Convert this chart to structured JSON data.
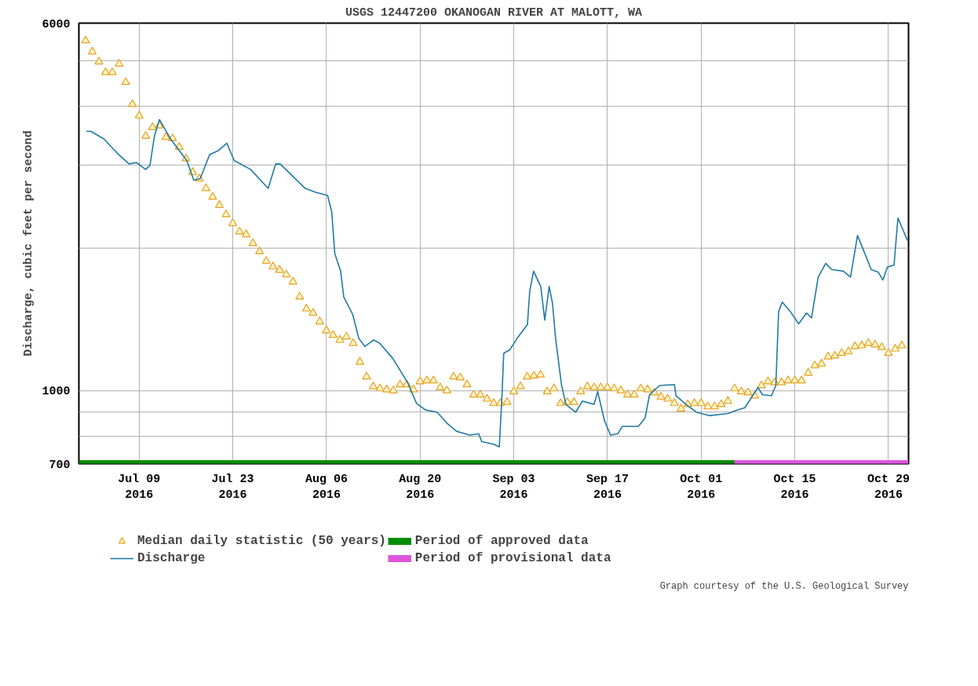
{
  "chart_data": {
    "type": "line",
    "title": "USGS 12447200 OKANOGAN RIVER AT MALOTT, WA",
    "ylabel": "Discharge, cubic feet per second",
    "log": "y",
    "grid": true,
    "legend": "bottom",
    "xlim": [
      "2016-06-30",
      "2016-11-01"
    ],
    "xticks": [
      {
        "value": "2016-07-09",
        "label": "Jul 09\n2016"
      },
      {
        "value": "2016-07-23",
        "label": "Jul 23\n2016"
      },
      {
        "value": "2016-08-06",
        "label": "Aug 06\n2016"
      },
      {
        "value": "2016-08-20",
        "label": "Aug 20\n2016"
      },
      {
        "value": "2016-09-03",
        "label": "Sep 03\n2016"
      },
      {
        "value": "2016-09-17",
        "label": "Sep 17\n2016"
      },
      {
        "value": "2016-10-01",
        "label": "Oct 01\n2016"
      },
      {
        "value": "2016-10-15",
        "label": "Oct 15\n2016"
      },
      {
        "value": "2016-10-29",
        "label": "Oct 29\n2016"
      }
    ],
    "ylim": [
      700,
      6000
    ],
    "yticks": [
      700,
      {
        "value": 800,
        "label": null
      },
      {
        "value": 900,
        "label": null
      },
      1000,
      {
        "value": 2000,
        "label": null
      },
      {
        "value": 3000,
        "label": null
      },
      {
        "value": 4000,
        "label": null
      },
      {
        "value": 5000,
        "label": null
      },
      6000
    ],
    "series": [
      {
        "name": "Median daily statistic (50 years)",
        "type": "scatter",
        "marker": "triangle",
        "color": "#e6a020",
        "x": [
          "2016-07-01",
          "2016-07-02",
          "2016-07-03",
          "2016-07-04",
          "2016-07-05",
          "2016-07-06",
          "2016-07-07",
          "2016-07-08",
          "2016-07-09",
          "2016-07-10",
          "2016-07-11",
          "2016-07-12",
          "2016-07-13",
          "2016-07-14",
          "2016-07-15",
          "2016-07-16",
          "2016-07-17",
          "2016-07-18",
          "2016-07-19",
          "2016-07-20",
          "2016-07-21",
          "2016-07-22",
          "2016-07-23",
          "2016-07-24",
          "2016-07-25",
          "2016-07-26",
          "2016-07-27",
          "2016-07-28",
          "2016-07-29",
          "2016-07-30",
          "2016-07-31",
          "2016-08-01",
          "2016-08-02",
          "2016-08-03",
          "2016-08-04",
          "2016-08-05",
          "2016-08-06",
          "2016-08-07",
          "2016-08-08",
          "2016-08-09",
          "2016-08-10",
          "2016-08-11",
          "2016-08-12",
          "2016-08-13",
          "2016-08-14",
          "2016-08-15",
          "2016-08-16",
          "2016-08-17",
          "2016-08-18",
          "2016-08-19",
          "2016-08-20",
          "2016-08-21",
          "2016-08-22",
          "2016-08-23",
          "2016-08-24",
          "2016-08-25",
          "2016-08-26",
          "2016-08-27",
          "2016-08-28",
          "2016-08-29",
          "2016-08-30",
          "2016-08-31",
          "2016-09-01",
          "2016-09-02",
          "2016-09-03",
          "2016-09-04",
          "2016-09-05",
          "2016-09-06",
          "2016-09-07",
          "2016-09-08",
          "2016-09-09",
          "2016-09-10",
          "2016-09-11",
          "2016-09-12",
          "2016-09-13",
          "2016-09-14",
          "2016-09-15",
          "2016-09-16",
          "2016-09-17",
          "2016-09-18",
          "2016-09-19",
          "2016-09-20",
          "2016-09-21",
          "2016-09-22",
          "2016-09-23",
          "2016-09-24",
          "2016-09-25",
          "2016-09-26",
          "2016-09-27",
          "2016-09-28",
          "2016-09-29",
          "2016-09-30",
          "2016-10-01",
          "2016-10-02",
          "2016-10-03",
          "2016-10-04",
          "2016-10-05",
          "2016-10-06",
          "2016-10-07",
          "2016-10-08",
          "2016-10-09",
          "2016-10-10",
          "2016-10-11",
          "2016-10-12",
          "2016-10-13",
          "2016-10-14",
          "2016-10-15",
          "2016-10-16",
          "2016-10-17",
          "2016-10-18",
          "2016-10-19",
          "2016-10-20",
          "2016-10-21",
          "2016-10-22",
          "2016-10-23",
          "2016-10-24",
          "2016-10-25",
          "2016-10-26",
          "2016-10-27",
          "2016-10-28",
          "2016-10-29",
          "2016-10-30",
          "2016-10-31"
        ],
        "values": [
          5510,
          5220,
          4970,
          4720,
          4720,
          4920,
          4500,
          4040,
          3820,
          3460,
          3610,
          3640,
          3440,
          3420,
          3280,
          3100,
          2900,
          2810,
          2680,
          2570,
          2470,
          2360,
          2260,
          2170,
          2140,
          2050,
          1970,
          1880,
          1830,
          1800,
          1760,
          1700,
          1580,
          1490,
          1460,
          1400,
          1340,
          1310,
          1280,
          1300,
          1260,
          1150,
          1070,
          1020,
          1010,
          1005,
          1000,
          1030,
          1030,
          1005,
          1045,
          1050,
          1050,
          1015,
          1000,
          1070,
          1065,
          1030,
          980,
          980,
          960,
          940,
          940,
          945,
          995,
          1020,
          1070,
          1075,
          1080,
          995,
          1010,
          940,
          945,
          945,
          995,
          1020,
          1015,
          1015,
          1015,
          1010,
          1000,
          980,
          980,
          1010,
          1005,
          990,
          970,
          960,
          940,
          915,
          935,
          940,
          940,
          925,
          925,
          935,
          950,
          1010,
          995,
          990,
          975,
          1025,
          1045,
          1040,
          1040,
          1050,
          1050,
          1050,
          1090,
          1130,
          1140,
          1180,
          1185,
          1200,
          1210,
          1240,
          1245,
          1260,
          1250,
          1235,
          1200,
          1225,
          1245
        ]
      },
      {
        "name": "Discharge",
        "color": "#1f7aa5",
        "x": [
          "2016-07-01T03:00",
          "2016-07-01T19:00",
          "2016-07-03T18:00",
          "2016-07-05T18:00",
          "2016-07-07T12:00",
          "2016-07-08T15:00",
          "2016-07-09T23:00",
          "2016-07-10T15:00",
          "2016-07-11T07:00",
          "2016-07-12T01:00",
          "2016-07-13T17:00",
          "2016-07-16T03:00",
          "2016-07-17T04:00",
          "2016-07-18T03:00",
          "2016-07-19T13:00",
          "2016-07-20T19:00",
          "2016-07-22T03:00",
          "2016-07-23T05:00",
          "2016-07-25T16:00",
          "2016-07-28T07:00",
          "2016-07-29T10:00",
          "2016-07-30T02:00",
          "2016-08-02T20:00",
          "2016-08-04T09:00",
          "2016-08-06T04:00",
          "2016-08-06T19:00",
          "2016-08-07T06:00",
          "2016-08-08T03:00",
          "2016-08-08T14:00",
          "2016-08-09T22:00",
          "2016-08-10T20:00",
          "2016-08-11T18:00",
          "2016-08-13T01:00",
          "2016-08-13T23:00",
          "2016-08-15T22:00",
          "2016-08-18T03:00",
          "2016-08-19T11:00",
          "2016-08-20T19:00",
          "2016-08-22T13:00",
          "2016-08-24T03:00",
          "2016-08-25T11:00",
          "2016-08-27T10:00",
          "2016-08-28T18:00",
          "2016-08-29T05:00",
          "2016-08-30T23:00",
          "2016-08-31T20:00",
          "2016-09-01T05:00",
          "2016-09-01T12:00",
          "2016-09-02T10:00",
          "2016-09-03T12:00",
          "2016-09-05T01:00",
          "2016-09-05T09:00",
          "2016-09-05T23:00",
          "2016-09-07T01:00",
          "2016-09-07T15:00",
          "2016-09-08T07:00",
          "2016-09-08T19:00",
          "2016-09-09T06:00",
          "2016-09-10T03:00",
          "2016-09-10T19:00",
          "2016-09-12T06:00",
          "2016-09-13T06:00",
          "2016-09-15T00:00",
          "2016-09-15T13:00",
          "2016-09-16T13:00",
          "2016-09-17T11:00",
          "2016-09-18T13:00",
          "2016-09-19T05:00",
          "2016-09-21T15:00",
          "2016-09-22T15:00",
          "2016-09-23T07:00",
          "2016-09-24T19:00",
          "2016-09-27T00:00",
          "2016-09-27T06:00",
          "2016-09-28T18:00",
          "2016-09-30T07:00",
          "2016-10-02T07:00",
          "2016-10-05T03:00",
          "2016-10-06T00:00",
          "2016-10-07T13:00",
          "2016-10-09T12:00",
          "2016-10-10T04:00",
          "2016-10-11T12:00",
          "2016-10-12T04:00",
          "2016-10-12T14:00",
          "2016-10-13T03:00",
          "2016-10-14T08:00",
          "2016-10-15T14:00",
          "2016-10-16T18:00",
          "2016-10-17T12:00",
          "2016-10-18T12:00",
          "2016-10-19T15:00",
          "2016-10-20T12:00",
          "2016-10-22T06:00",
          "2016-10-23T08:00",
          "2016-10-24T09:00",
          "2016-10-25T13:00",
          "2016-10-26T10:00",
          "2016-10-27T12:00",
          "2016-10-28T04:00",
          "2016-10-28T20:00",
          "2016-10-29T20:00",
          "2016-10-30T10:00",
          "2016-10-31T20:00"
        ],
        "values": [
          3540,
          3540,
          3410,
          3180,
          3020,
          3040,
          2940,
          3000,
          3460,
          3750,
          3410,
          3070,
          2790,
          2810,
          3160,
          3220,
          3340,
          3070,
          2940,
          2680,
          3020,
          3020,
          2680,
          2630,
          2590,
          2390,
          1950,
          1790,
          1580,
          1450,
          1290,
          1240,
          1280,
          1260,
          1170,
          1040,
          940,
          910,
          900,
          850,
          820,
          805,
          810,
          780,
          770,
          760,
          955,
          1200,
          1220,
          1290,
          1380,
          1620,
          1790,
          1660,
          1410,
          1660,
          1530,
          1290,
          1030,
          935,
          900,
          950,
          935,
          995,
          865,
          805,
          810,
          840,
          840,
          875,
          980,
          1025,
          1030,
          975,
          935,
          900,
          885,
          895,
          905,
          920,
          1015,
          980,
          975,
          1025,
          1470,
          1540,
          1470,
          1385,
          1460,
          1425,
          1740,
          1860,
          1805,
          1790,
          1740,
          2130,
          1940,
          1805,
          1780,
          1715,
          1825,
          1845,
          2320,
          2080
        ]
      },
      {
        "name": "Period of approved data",
        "type": "line",
        "color": "#008c00",
        "x": [
          "2016-06-30",
          "2016-10-06"
        ],
        "values": [
          700,
          700
        ]
      },
      {
        "name": "Period of provisional data",
        "type": "line",
        "color": "#dd55dd",
        "x": [
          "2016-10-06",
          "2016-11-01"
        ],
        "values": [
          700,
          700
        ]
      }
    ],
    "annotations": [
      "Graph courtesy of the U.S. Geological Survey"
    ]
  }
}
